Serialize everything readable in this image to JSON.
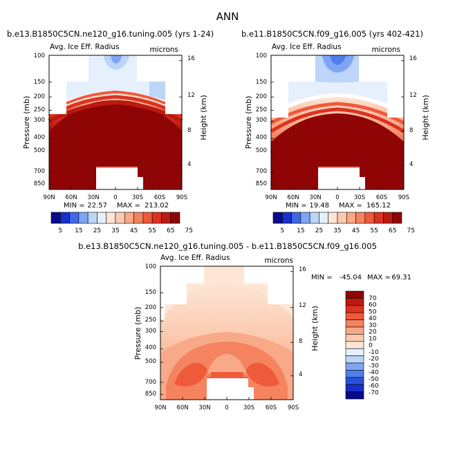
{
  "figure_title": "ANN",
  "chart_data": [
    {
      "type": "contour",
      "panel": "top-left",
      "title": "b.e13.B1850C5CN.ne120_g16.tuning.005 (yrs 1-24)",
      "variable": "Avg. Ice Eff. Radius",
      "units": "microns",
      "ylabel": "Pressure (mb)",
      "y2label": "Height (km)",
      "xticks": [
        "90N",
        "60N",
        "30N",
        "0",
        "30S",
        "60S",
        "90S"
      ],
      "yticks": [
        "100",
        "150",
        "200",
        "250",
        "300",
        "400",
        "500",
        "700",
        "850"
      ],
      "y2ticks": [
        "16",
        "12",
        "8",
        "4"
      ],
      "min_label": "MIN =",
      "min": "22.57",
      "max_label": "MAX =",
      "max": "213.02"
    },
    {
      "type": "contour",
      "panel": "top-right",
      "title": "b.e11.B1850C5CN.f09_g16.005 (yrs 402-421)",
      "variable": "Avg. Ice Eff. Radius",
      "units": "microns",
      "ylabel": "Pressure (mb)",
      "y2label": "Height (km)",
      "xticks": [
        "90N",
        "60N",
        "30N",
        "0",
        "30S",
        "60S",
        "90S"
      ],
      "yticks": [
        "100",
        "150",
        "200",
        "250",
        "300",
        "400",
        "500",
        "700",
        "850"
      ],
      "y2ticks": [
        "16",
        "12",
        "8",
        "4"
      ],
      "min_label": "MIN =",
      "min": "19.48",
      "max_label": "MAX =",
      "max": "165.12"
    },
    {
      "type": "contour",
      "panel": "bottom-difference",
      "title": "b.e13.B1850C5CN.ne120_g16.tuning.005 - b.e11.B1850C5CN.f09_g16.005",
      "variable": "Avg. Ice Eff. Radius",
      "units": "microns",
      "ylabel": "Pressure (mb)",
      "y2label": "Height (km)",
      "xticks": [
        "90N",
        "60N",
        "30N",
        "0",
        "30S",
        "60S",
        "90S"
      ],
      "yticks": [
        "100",
        "150",
        "200",
        "250",
        "300",
        "400",
        "500",
        "700",
        "850"
      ],
      "y2ticks": [
        "16",
        "12",
        "8",
        "4"
      ],
      "min_label": "MIN =",
      "min": "-45.04",
      "max_label": "MAX =",
      "max": "69.31"
    }
  ],
  "colorbar_top": {
    "labels": [
      "5",
      "15",
      "25",
      "35",
      "45",
      "55",
      "65",
      "75"
    ],
    "colors": [
      "#0a0a8c",
      "#1a2fc9",
      "#3f68e6",
      "#7ea6f2",
      "#bcd5f8",
      "#e6f0fc",
      "#fde6d6",
      "#fbcbb0",
      "#f8a987",
      "#f5835f",
      "#ef5a3a",
      "#dc3220",
      "#bc1a10",
      "#8f0505"
    ]
  },
  "colorbar_diff": {
    "labels": [
      "70",
      "60",
      "50",
      "40",
      "30",
      "20",
      "10",
      "0",
      "-10",
      "-20",
      "-30",
      "-40",
      "-50",
      "-60",
      "-70"
    ],
    "colors": [
      "#8f0505",
      "#bc1a10",
      "#dc3220",
      "#ef5a3a",
      "#f5835f",
      "#f8a987",
      "#fbcbb0",
      "#fde6d6",
      "#e6f0fc",
      "#bcd5f8",
      "#7ea6f2",
      "#4f7fe9",
      "#2a4fd8",
      "#1a2fc9",
      "#0a0a8c"
    ]
  }
}
